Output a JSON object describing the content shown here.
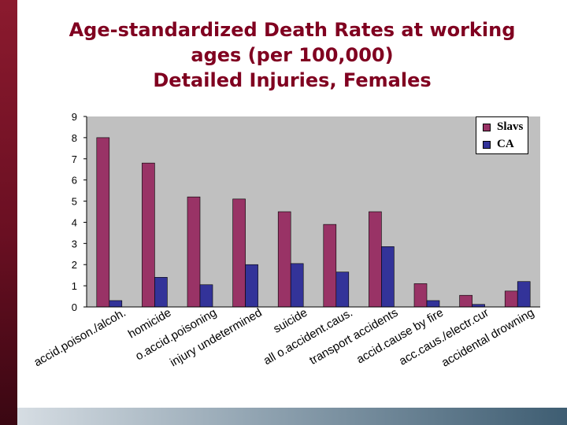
{
  "title": {
    "line1": "Age-standardized Death Rates at working",
    "line2": "ages (per 100,000)",
    "line3": "Detailed Injuries, Females"
  },
  "chart_data": {
    "type": "bar",
    "categories": [
      "accid.poison./alcoh.",
      "homicide",
      "o.accid.poisoning",
      "injury undetermined",
      "suicide",
      "all o.accident.caus.",
      "transport accidents",
      "accid.cause by fire",
      "acc.caus./electr.cur",
      "accidental drowning"
    ],
    "series": [
      {
        "name": "Slavs",
        "color": "#993366",
        "values": [
          8.0,
          6.8,
          5.2,
          5.1,
          4.5,
          3.9,
          4.5,
          1.1,
          0.55,
          0.75
        ]
      },
      {
        "name": "CA",
        "color": "#333399",
        "values": [
          0.3,
          1.4,
          1.05,
          2.0,
          2.05,
          1.65,
          2.85,
          0.3,
          0.12,
          1.2
        ]
      }
    ],
    "ylim": [
      0,
      9
    ],
    "yticks": [
      "0",
      "1",
      "2",
      "3",
      "4",
      "5",
      "6",
      "7",
      "8",
      "9"
    ],
    "grid": false,
    "plot_background": "#c0c0c0",
    "legend_position": "top-right"
  }
}
